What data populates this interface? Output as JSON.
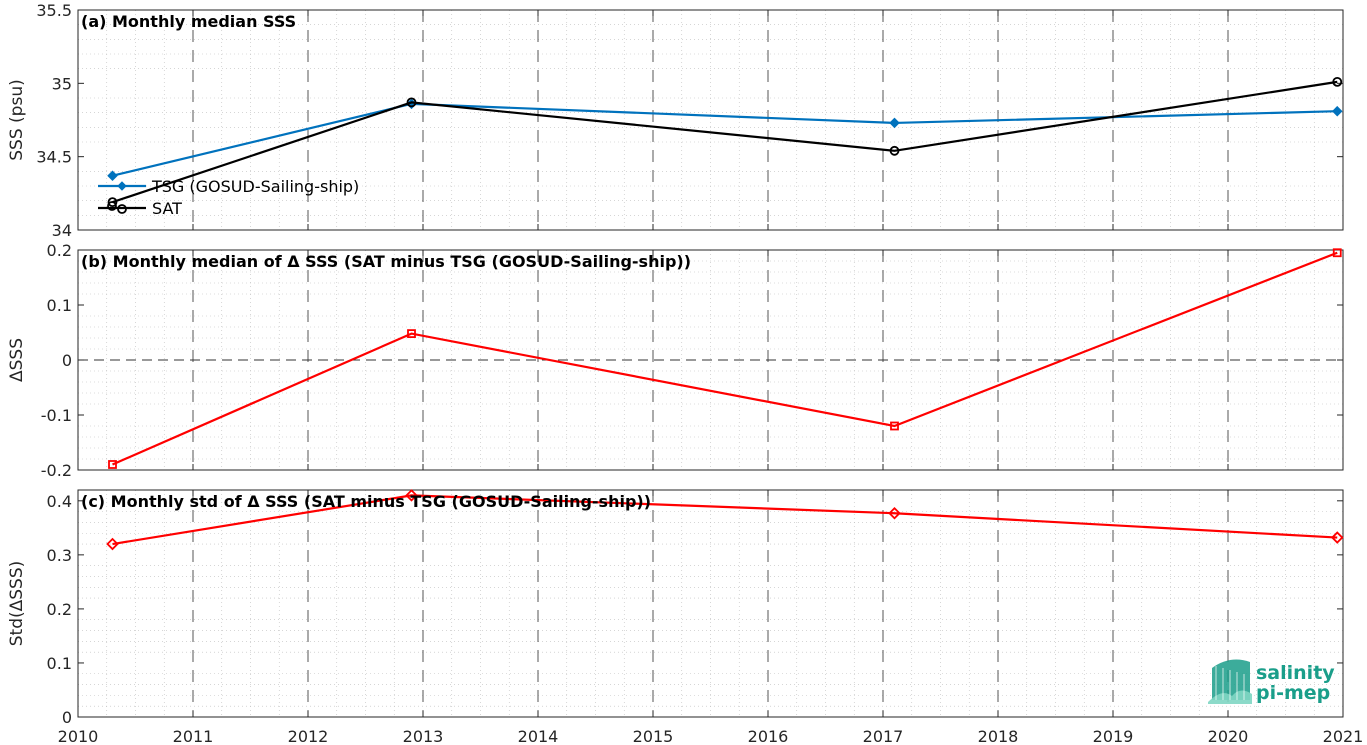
{
  "chart_data": [
    {
      "type": "line",
      "title": "(a) Monthly median SSS",
      "ylabel": "SSS (psu)",
      "xlim": [
        2010,
        2021
      ],
      "ylim": [
        34,
        35.5
      ],
      "yticks": [
        34,
        34.5,
        35,
        35.5
      ],
      "yticklabels": [
        "34",
        "34.5",
        "35",
        "35.5"
      ],
      "grid": true,
      "legend": "bottom-left",
      "series": [
        {
          "name": "TSG (GOSUD-Sailing-ship)",
          "color": "#0072bd",
          "marker": "diamond",
          "x": [
            2010.3,
            2012.9,
            2017.1,
            2020.95
          ],
          "y": [
            34.37,
            34.86,
            34.73,
            34.81
          ]
        },
        {
          "name": "SAT",
          "color": "#000000",
          "marker": "circle",
          "x": [
            2010.3,
            2012.9,
            2017.1,
            2020.95
          ],
          "y": [
            34.19,
            34.87,
            34.54,
            35.01
          ]
        }
      ]
    },
    {
      "type": "line",
      "title": "(b) Monthly median of Δ SSS (SAT minus TSG (GOSUD-Sailing-ship))",
      "ylabel": "ΔSSS",
      "xlim": [
        2010,
        2021
      ],
      "ylim": [
        -0.2,
        0.2
      ],
      "yticks": [
        -0.2,
        -0.1,
        0,
        0.1,
        0.2
      ],
      "yticklabels": [
        "-0.2",
        "-0.1",
        "0",
        "0.1",
        "0.2"
      ],
      "grid": true,
      "zero_line": true,
      "series": [
        {
          "color": "#ff0000",
          "marker": "square",
          "x": [
            2010.3,
            2012.9,
            2017.1,
            2020.95
          ],
          "y": [
            -0.19,
            0.048,
            -0.12,
            0.195
          ]
        }
      ]
    },
    {
      "type": "line",
      "title": "(c) Monthly std of Δ SSS (SAT minus TSG (GOSUD-Sailing-ship))",
      "ylabel": "Std(ΔSSS)",
      "xlim": [
        2010,
        2021
      ],
      "ylim": [
        0,
        0.42
      ],
      "yticks": [
        0,
        0.1,
        0.2,
        0.3,
        0.4
      ],
      "yticklabels": [
        "0",
        "0.1",
        "0.2",
        "0.3",
        "0.4"
      ],
      "grid": true,
      "series": [
        {
          "color": "#ff0000",
          "marker": "diamond",
          "x": [
            2010.3,
            2012.9,
            2017.1,
            2020.95
          ],
          "y": [
            0.32,
            0.41,
            0.377,
            0.332
          ]
        }
      ]
    }
  ],
  "xaxis": {
    "ticks": [
      2010,
      2011,
      2012,
      2013,
      2014,
      2015,
      2016,
      2017,
      2018,
      2019,
      2020,
      2021
    ],
    "ticklabels": [
      "2010",
      "2011",
      "2012",
      "2013",
      "2014",
      "2015",
      "2016",
      "2017",
      "2018",
      "2019",
      "2020",
      "2021"
    ]
  },
  "logo": {
    "line1": "salinity",
    "line2": "pi-mep",
    "color": "#1a9e8a"
  }
}
